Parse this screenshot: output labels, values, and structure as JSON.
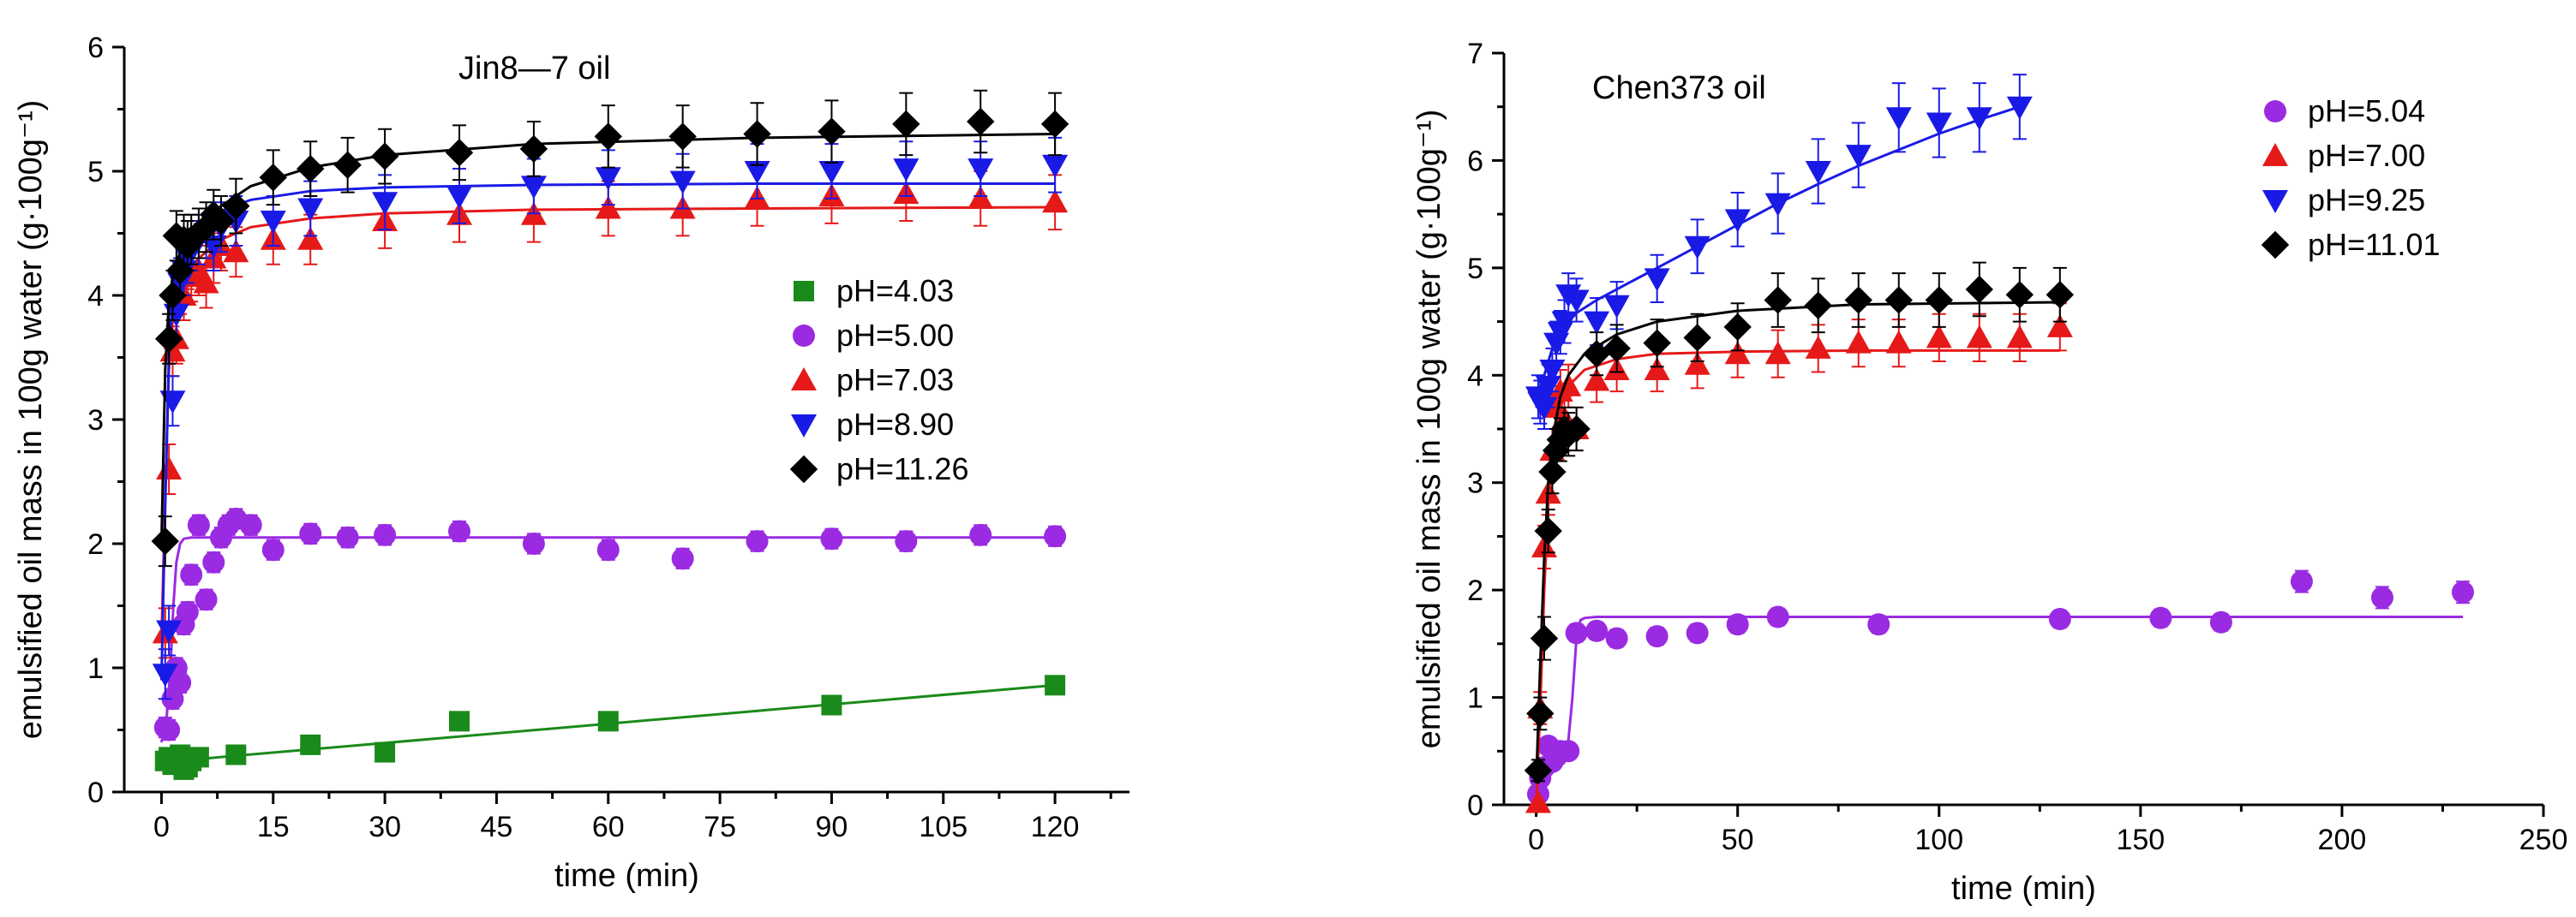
{
  "chart_data": [
    {
      "type": "scatter",
      "title": "Jin8—7 oil",
      "xlabel": "time (min)",
      "ylabel": "emulsified oil mass in 100g water (g·100g⁻¹)",
      "xlim": [
        -5,
        130
      ],
      "ylim": [
        0,
        6
      ],
      "xticks": [
        "0",
        "15",
        "30",
        "45",
        "60",
        "75",
        "90",
        "105",
        "120"
      ],
      "yticks": [
        "0",
        "1",
        "2",
        "3",
        "4",
        "5",
        "6"
      ],
      "series": [
        {
          "name": "pH=4.03",
          "color": "#1a8a1a",
          "marker": "square",
          "x": [
            0.5,
            1,
            1.5,
            2,
            2.5,
            3,
            3.5,
            4,
            5,
            10,
            20,
            30,
            40,
            60,
            90,
            120
          ],
          "y": [
            0.25,
            0.28,
            0.22,
            0.26,
            0.3,
            0.18,
            0.2,
            0.25,
            0.28,
            0.3,
            0.38,
            0.32,
            0.57,
            0.57,
            0.7,
            0.86
          ],
          "err": [
            0.03,
            0.03,
            0.03,
            0.03,
            0.03,
            0.03,
            0.03,
            0.03,
            0.03,
            0.03,
            0.03,
            0.03,
            0.03,
            0.03,
            0.03,
            0.03
          ],
          "fit": {
            "x": [
              0,
              120
            ],
            "y": [
              0.24,
              0.86
            ]
          }
        },
        {
          "name": "pH=5.00",
          "color": "#9a2be2",
          "marker": "circle",
          "x": [
            0.5,
            1,
            1.5,
            2,
            2.5,
            3,
            3.5,
            4,
            5,
            6,
            7,
            8,
            9,
            10,
            12,
            15,
            20,
            25,
            30,
            40,
            50,
            60,
            70,
            80,
            90,
            100,
            110,
            120
          ],
          "y": [
            0.52,
            0.5,
            0.75,
            1.0,
            0.88,
            1.35,
            1.45,
            1.75,
            2.15,
            1.55,
            1.85,
            2.05,
            2.15,
            2.2,
            2.15,
            1.95,
            2.08,
            2.05,
            2.07,
            2.1,
            2.0,
            1.95,
            1.88,
            2.02,
            2.04,
            2.02,
            2.07,
            2.06
          ],
          "err": [
            0.08,
            0.08,
            0.08,
            0.08,
            0.08,
            0.08,
            0.08,
            0.08,
            0.08,
            0.08,
            0.08,
            0.08,
            0.08,
            0.08,
            0.08,
            0.08,
            0.08,
            0.08,
            0.08,
            0.08,
            0.08,
            0.08,
            0.08,
            0.08,
            0.08,
            0.08,
            0.08,
            0.08
          ],
          "fit": {
            "x": [
              0,
              0.7,
              1.2,
              1.6,
              2.0,
              2.5,
              3,
              4,
              6,
              10,
              120
            ],
            "y": [
              0.4,
              0.6,
              1.0,
              1.5,
              1.85,
              2.0,
              2.04,
              2.05,
              2.05,
              2.05,
              2.05
            ]
          }
        },
        {
          "name": "pH=7.03",
          "color": "#e61919",
          "marker": "triangle-up",
          "x": [
            0.5,
            1,
            1.5,
            2,
            2.5,
            3,
            3.5,
            4,
            5,
            6,
            7,
            8,
            10,
            15,
            20,
            30,
            40,
            50,
            60,
            70,
            80,
            90,
            100,
            110,
            120
          ],
          "y": [
            1.28,
            2.6,
            3.55,
            3.65,
            4.05,
            4.0,
            4.25,
            4.15,
            4.2,
            4.1,
            4.3,
            4.4,
            4.35,
            4.45,
            4.45,
            4.6,
            4.65,
            4.65,
            4.7,
            4.7,
            4.78,
            4.8,
            4.82,
            4.78,
            4.75
          ],
          "err": [
            0.2,
            0.2,
            0.2,
            0.2,
            0.2,
            0.2,
            0.2,
            0.2,
            0.2,
            0.2,
            0.2,
            0.2,
            0.2,
            0.2,
            0.2,
            0.22,
            0.22,
            0.22,
            0.22,
            0.22,
            0.22,
            0.22,
            0.22,
            0.22,
            0.22
          ],
          "fit": {
            "x": [
              0,
              0.5,
              1,
              1.5,
              2,
              3,
              5,
              8,
              12,
              20,
              30,
              50,
              80,
              120
            ],
            "y": [
              1.2,
              2.4,
              3.4,
              3.8,
              4.0,
              4.15,
              4.3,
              4.45,
              4.55,
              4.62,
              4.66,
              4.69,
              4.7,
              4.71
            ]
          }
        },
        {
          "name": "pH=8.90",
          "color": "#1a1ae6",
          "marker": "triangle-down",
          "x": [
            0.5,
            1,
            1.5,
            2,
            2.5,
            3,
            3.5,
            4,
            5,
            6,
            7,
            8,
            10,
            15,
            20,
            30,
            40,
            50,
            60,
            70,
            80,
            90,
            100,
            110,
            120
          ],
          "y": [
            0.95,
            1.3,
            3.15,
            3.85,
            4.1,
            4.2,
            4.3,
            4.4,
            4.45,
            4.5,
            4.4,
            4.55,
            4.6,
            4.6,
            4.7,
            4.75,
            4.8,
            4.88,
            4.95,
            4.92,
            5.0,
            5.0,
            5.02,
            5.02,
            5.05
          ],
          "err": [
            0.2,
            0.2,
            0.2,
            0.2,
            0.2,
            0.2,
            0.2,
            0.2,
            0.2,
            0.2,
            0.2,
            0.2,
            0.2,
            0.2,
            0.22,
            0.22,
            0.22,
            0.22,
            0.22,
            0.22,
            0.22,
            0.22,
            0.22,
            0.22,
            0.22
          ],
          "fit": {
            "x": [
              0,
              0.5,
              1,
              1.5,
              2,
              3,
              5,
              8,
              12,
              20,
              30,
              50,
              80,
              120
            ],
            "y": [
              0.9,
              2.3,
              3.5,
              4.0,
              4.2,
              4.4,
              4.55,
              4.68,
              4.77,
              4.84,
              4.87,
              4.89,
              4.9,
              4.9
            ]
          }
        },
        {
          "name": "pH=11.26",
          "color": "#000000",
          "marker": "diamond",
          "x": [
            0.5,
            1,
            1.5,
            2,
            2.5,
            3,
            3.5,
            4,
            5,
            6,
            7,
            8,
            10,
            15,
            20,
            25,
            30,
            40,
            50,
            60,
            70,
            80,
            90,
            100,
            110,
            120
          ],
          "y": [
            2.02,
            3.65,
            4.0,
            4.48,
            4.2,
            4.45,
            4.4,
            4.45,
            4.5,
            4.55,
            4.65,
            4.6,
            4.72,
            4.95,
            5.02,
            5.05,
            5.12,
            5.15,
            5.18,
            5.28,
            5.28,
            5.3,
            5.32,
            5.38,
            5.4,
            5.38
          ],
          "err": [
            0.2,
            0.2,
            0.2,
            0.2,
            0.2,
            0.2,
            0.2,
            0.2,
            0.2,
            0.2,
            0.2,
            0.2,
            0.22,
            0.22,
            0.22,
            0.22,
            0.22,
            0.22,
            0.22,
            0.25,
            0.25,
            0.25,
            0.25,
            0.25,
            0.25,
            0.25
          ],
          "fit": {
            "x": [
              0,
              0.5,
              1,
              1.5,
              2,
              3,
              5,
              8,
              12,
              20,
              30,
              50,
              80,
              120
            ],
            "y": [
              2.0,
              3.4,
              3.95,
              4.15,
              4.28,
              4.4,
              4.55,
              4.72,
              4.88,
              5.03,
              5.13,
              5.22,
              5.27,
              5.3
            ]
          }
        }
      ]
    },
    {
      "type": "scatter",
      "title": "Chen373 oil",
      "xlabel": "time (min)",
      "ylabel": "emulsified oil mass in 100g water (g·100g⁻¹)",
      "xlim": [
        -8,
        250
      ],
      "ylim": [
        0,
        7
      ],
      "xticks": [
        "0",
        "50",
        "100",
        "150",
        "200",
        "250"
      ],
      "yticks": [
        "0",
        "1",
        "2",
        "3",
        "4",
        "5",
        "6",
        "7"
      ],
      "series": [
        {
          "name": "pH=5.04",
          "color": "#9a2be2",
          "marker": "circle",
          "x": [
            0.5,
            1,
            2,
            3,
            4,
            5,
            6,
            8,
            10,
            15,
            20,
            30,
            40,
            50,
            60,
            85,
            130,
            155,
            170,
            190,
            210,
            230
          ],
          "y": [
            0.1,
            0.25,
            0.35,
            0.55,
            0.4,
            0.45,
            0.5,
            0.5,
            1.6,
            1.62,
            1.55,
            1.57,
            1.6,
            1.68,
            1.75,
            1.68,
            1.73,
            1.74,
            1.7,
            2.08,
            1.93,
            1.98
          ],
          "err": [
            0.07,
            0.07,
            0.07,
            0.07,
            0.07,
            0.07,
            0.07,
            0.07,
            0.08,
            0.08,
            0.08,
            0.08,
            0.08,
            0.08,
            0.08,
            0.08,
            0.08,
            0.08,
            0.08,
            0.1,
            0.1,
            0.1
          ],
          "fit": {
            "x": [
              0,
              6,
              8,
              9,
              10,
              11,
              12,
              15,
              230
            ],
            "y": [
              0.3,
              0.45,
              0.6,
              1.0,
              1.55,
              1.72,
              1.74,
              1.75,
              1.75
            ]
          }
        },
        {
          "name": "pH=7.00",
          "color": "#e61919",
          "marker": "triangle-up",
          "x": [
            0.5,
            1,
            2,
            3,
            4,
            5,
            6,
            7,
            8,
            10,
            15,
            20,
            30,
            40,
            50,
            60,
            70,
            80,
            90,
            100,
            110,
            120,
            130
          ],
          "y": [
            0.02,
            0.9,
            2.4,
            2.9,
            3.3,
            3.7,
            3.85,
            3.6,
            3.9,
            3.5,
            3.95,
            4.05,
            4.05,
            4.1,
            4.2,
            4.2,
            4.25,
            4.3,
            4.3,
            4.35,
            4.35,
            4.35,
            4.45
          ],
          "err": [
            0.05,
            0.15,
            0.2,
            0.2,
            0.2,
            0.2,
            0.2,
            0.2,
            0.2,
            0.2,
            0.2,
            0.2,
            0.2,
            0.22,
            0.22,
            0.22,
            0.22,
            0.22,
            0.22,
            0.22,
            0.22,
            0.22,
            0.22
          ],
          "fit": {
            "x": [
              0,
              1,
              2,
              3,
              4,
              6,
              8,
              12,
              20,
              30,
              50,
              80,
              130
            ],
            "y": [
              0.0,
              0.9,
              2.0,
              2.8,
              3.3,
              3.7,
              3.9,
              4.05,
              4.15,
              4.2,
              4.22,
              4.23,
              4.23
            ]
          }
        },
        {
          "name": "pH=9.25",
          "color": "#1a1ae6",
          "marker": "triangle-down",
          "x": [
            0.5,
            1,
            2,
            3,
            4,
            5,
            6,
            7,
            8,
            10,
            15,
            20,
            30,
            40,
            50,
            60,
            70,
            80,
            90,
            100,
            110,
            120
          ],
          "y": [
            3.8,
            3.75,
            3.7,
            3.9,
            4.05,
            4.3,
            4.4,
            4.5,
            4.75,
            4.7,
            4.5,
            4.65,
            4.9,
            5.2,
            5.45,
            5.6,
            5.9,
            6.05,
            6.4,
            6.35,
            6.4,
            6.5
          ],
          "err": [
            0.2,
            0.2,
            0.2,
            0.2,
            0.2,
            0.2,
            0.2,
            0.2,
            0.2,
            0.2,
            0.22,
            0.22,
            0.22,
            0.25,
            0.25,
            0.28,
            0.3,
            0.3,
            0.32,
            0.32,
            0.32,
            0.3
          ],
          "fit": {
            "x": [
              0,
              2,
              4,
              6,
              8,
              10,
              15,
              20,
              30,
              40,
              50,
              60,
              70,
              80,
              90,
              100,
              110,
              120
            ],
            "y": [
              3.7,
              4.0,
              4.25,
              4.4,
              4.5,
              4.58,
              4.7,
              4.8,
              5.0,
              5.2,
              5.4,
              5.6,
              5.78,
              5.95,
              6.1,
              6.25,
              6.38,
              6.5
            ]
          }
        },
        {
          "name": "pH=11.01",
          "color": "#000000",
          "marker": "diamond",
          "x": [
            0.5,
            1,
            2,
            3,
            4,
            5,
            6,
            7,
            8,
            10,
            15,
            20,
            30,
            40,
            50,
            60,
            70,
            80,
            90,
            100,
            110,
            120,
            130
          ],
          "y": [
            0.32,
            0.85,
            1.55,
            2.55,
            3.1,
            3.3,
            3.4,
            3.5,
            3.45,
            3.5,
            4.2,
            4.25,
            4.3,
            4.35,
            4.45,
            4.7,
            4.65,
            4.7,
            4.7,
            4.7,
            4.8,
            4.75,
            4.75
          ],
          "err": [
            0.1,
            0.15,
            0.2,
            0.2,
            0.2,
            0.2,
            0.2,
            0.2,
            0.2,
            0.2,
            0.2,
            0.22,
            0.22,
            0.22,
            0.22,
            0.25,
            0.25,
            0.25,
            0.25,
            0.25,
            0.25,
            0.25,
            0.25
          ],
          "fit": {
            "x": [
              0,
              1,
              2,
              3,
              4,
              6,
              8,
              12,
              20,
              30,
              50,
              80,
              130
            ],
            "y": [
              0.2,
              1.3,
              2.3,
              3.0,
              3.4,
              3.8,
              4.0,
              4.2,
              4.38,
              4.5,
              4.6,
              4.66,
              4.68
            ]
          }
        }
      ]
    }
  ]
}
